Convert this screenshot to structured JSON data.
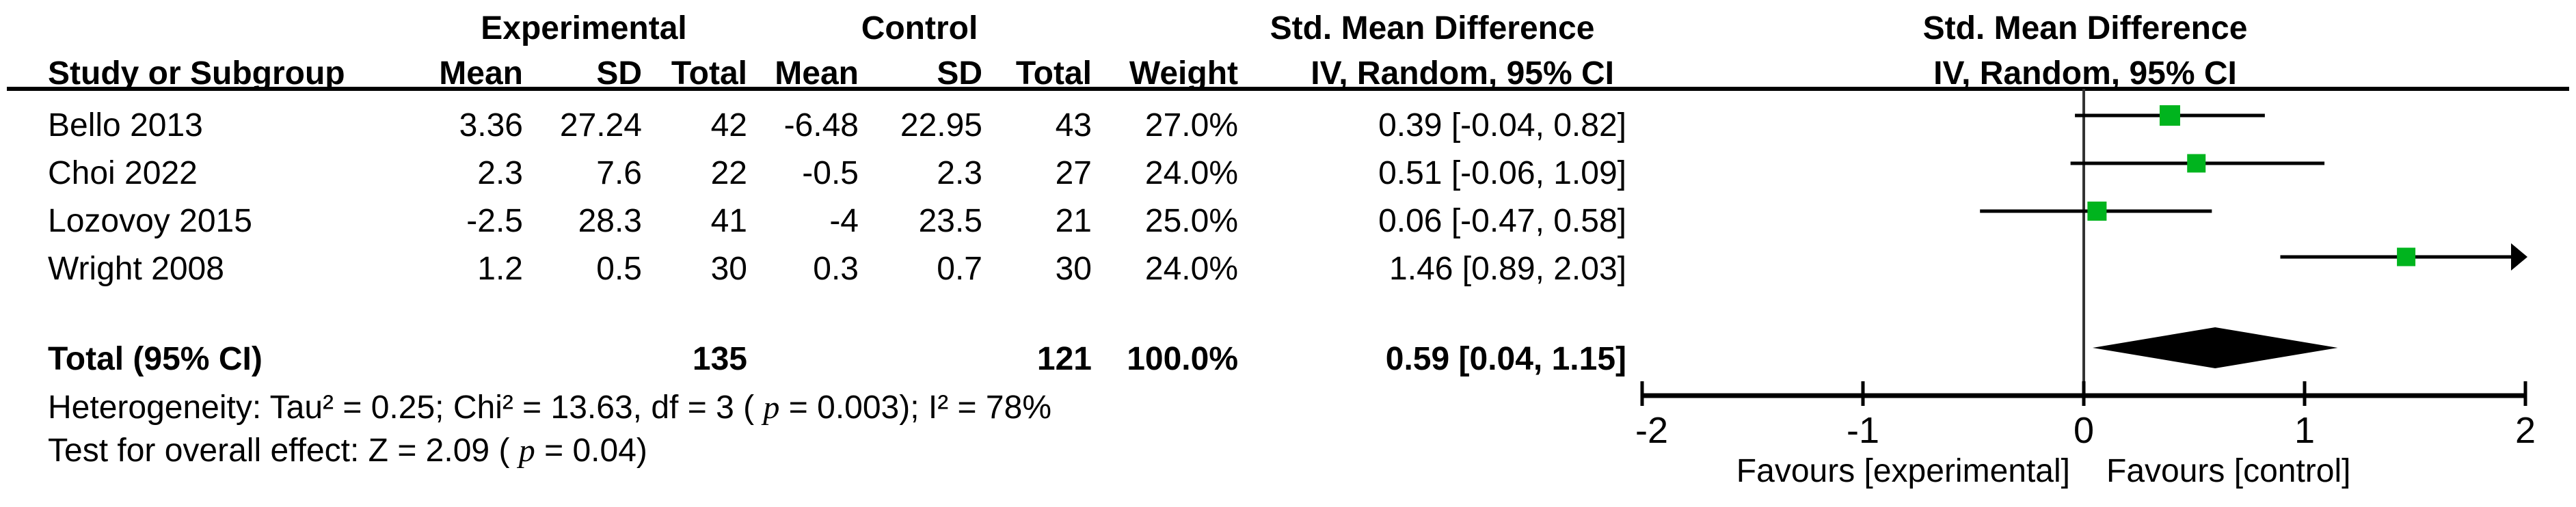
{
  "table": {
    "group_headers": {
      "experimental": "Experimental",
      "control": "Control",
      "smd_table": "Std. Mean Difference",
      "smd_plot": "Std. Mean Difference"
    },
    "col_headers": {
      "study": "Study or Subgroup",
      "mean": "Mean",
      "sd": "SD",
      "total": "Total",
      "weight": "Weight",
      "method_table": "IV, Random, 95% CI",
      "method_plot": "IV, Random, 95% CI"
    },
    "rows": [
      {
        "study": "Bello 2013",
        "exp_mean": "3.36",
        "exp_sd": "27.24",
        "exp_total": "42",
        "ctrl_mean": "-6.48",
        "ctrl_sd": "22.95",
        "ctrl_total": "43",
        "weight": "27.0%",
        "ci_text": "0.39 [-0.04, 0.82]"
      },
      {
        "study": "Choi 2022",
        "exp_mean": "2.3",
        "exp_sd": "7.6",
        "exp_total": "22",
        "ctrl_mean": "-0.5",
        "ctrl_sd": "2.3",
        "ctrl_total": "27",
        "weight": "24.0%",
        "ci_text": "0.51 [-0.06, 1.09]"
      },
      {
        "study": "Lozovoy 2015",
        "exp_mean": "-2.5",
        "exp_sd": "28.3",
        "exp_total": "41",
        "ctrl_mean": "-4",
        "ctrl_sd": "23.5",
        "ctrl_total": "21",
        "weight": "25.0%",
        "ci_text": "0.06 [-0.47, 0.58]"
      },
      {
        "study": "Wright 2008",
        "exp_mean": "1.2",
        "exp_sd": "0.5",
        "exp_total": "30",
        "ctrl_mean": "0.3",
        "ctrl_sd": "0.7",
        "ctrl_total": "30",
        "weight": "24.0%",
        "ci_text": "1.46 [0.89, 2.03]"
      }
    ],
    "total_row": {
      "label": "Total (95% CI)",
      "exp_total": "135",
      "ctrl_total": "121",
      "weight": "100.0%",
      "ci_text": "0.59 [0.04, 1.15]"
    },
    "footer": {
      "heterogeneity_pre": "Heterogeneity: Tau² = 0.25; Chi² = 13.63, df = 3 ( ",
      "heterogeneity_p": "p",
      "heterogeneity_post": " = 0.003); I² = 78%",
      "overall_pre": "Test for overall effect: Z = 2.09 ( ",
      "overall_p": "p",
      "overall_post": " = 0.04)"
    }
  },
  "chart_data": {
    "type": "forest",
    "effect_measure": "Std. Mean Difference",
    "method": "IV, Random, 95% CI",
    "x_axis": {
      "min": -2,
      "max": 2,
      "ticks": [
        -2,
        -1,
        0,
        1,
        2
      ],
      "tick_labels": [
        "-2",
        "-1",
        "0",
        "1",
        "2"
      ],
      "left_label": "Favours [experimental]",
      "right_label": "Favours [control]"
    },
    "studies": [
      {
        "name": "Bello 2013",
        "est": 0.39,
        "lo": -0.04,
        "hi": 0.82,
        "weight_pct": 27.0,
        "clipped_right": false
      },
      {
        "name": "Choi 2022",
        "est": 0.51,
        "lo": -0.06,
        "hi": 1.09,
        "weight_pct": 24.0,
        "clipped_right": false
      },
      {
        "name": "Lozovoy 2015",
        "est": 0.06,
        "lo": -0.47,
        "hi": 0.58,
        "weight_pct": 25.0,
        "clipped_right": false
      },
      {
        "name": "Wright 2008",
        "est": 1.46,
        "lo": 0.89,
        "hi": 2.03,
        "weight_pct": 24.0,
        "clipped_right": true
      }
    ],
    "overall": {
      "label": "Total (95% CI)",
      "est": 0.59,
      "lo": 0.04,
      "hi": 1.15
    },
    "marker_color": "#00b41e",
    "line_color": "#000000",
    "axis_color": "#000000",
    "zero_line_color": "#333333"
  }
}
